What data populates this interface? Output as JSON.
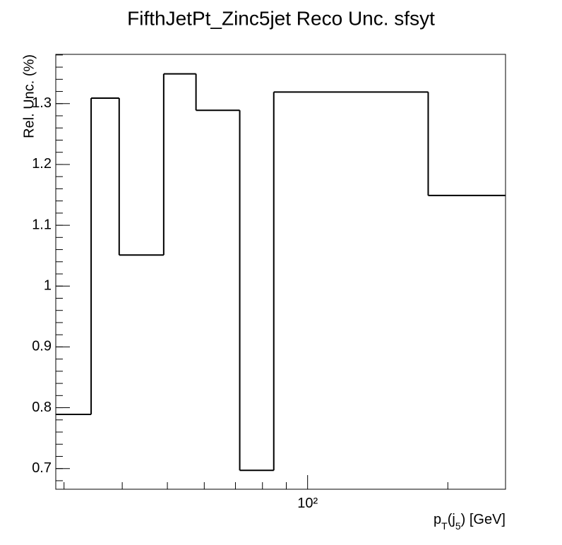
{
  "chart_data": {
    "type": "histogram",
    "title": "FifthJetPt_Zinc5jet Reco Unc. sfsyt",
    "ylabel": "Rel. Unc. (%)",
    "xlabel_parts": [
      {
        "text": "p"
      },
      {
        "text": "T",
        "sub": true
      },
      {
        "text": "(j"
      },
      {
        "text": "5",
        "sub": true
      },
      {
        "text": ") [GeV]"
      }
    ],
    "bins": [
      28.8,
      34.3,
      39.4,
      49.1,
      57.6,
      71.5,
      84.6,
      181.5,
      266
    ],
    "values": [
      0.789,
      1.309,
      1.051,
      1.349,
      1.289,
      0.697,
      1.319,
      1.149
    ],
    "color": "#000000",
    "xlog": true,
    "xlim": [
      28.8,
      266
    ],
    "xticks": [
      {
        "value": 100,
        "label": "10²"
      }
    ],
    "x_minor_ticks": [
      30,
      40,
      50,
      60,
      70,
      80,
      90,
      200
    ],
    "ylim": [
      0.666,
      1.381
    ],
    "yticks": [
      0.7,
      0.8,
      0.9,
      1,
      1.1,
      1.2,
      1.3
    ]
  }
}
